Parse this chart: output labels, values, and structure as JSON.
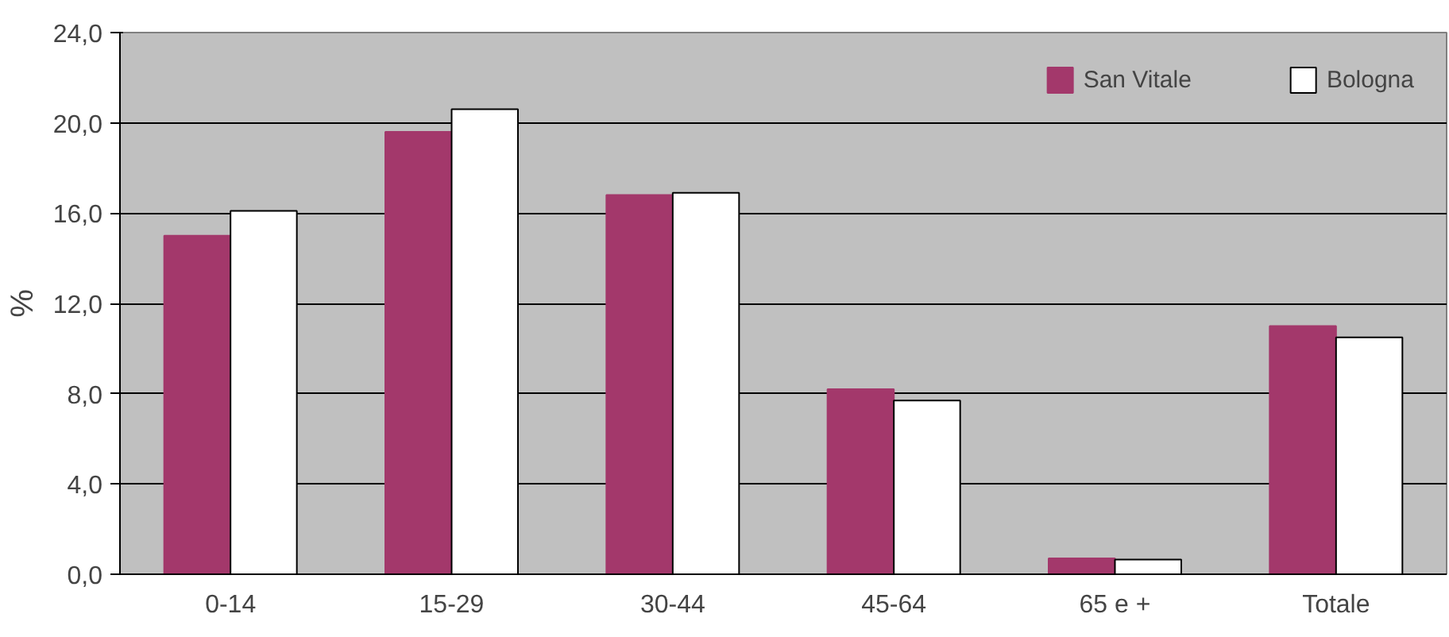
{
  "chart_data": {
    "type": "bar",
    "ylabel": "%",
    "categories": [
      "0-14",
      "15-29",
      "30-44",
      "45-64",
      "65 e +",
      "Totale"
    ],
    "series": [
      {
        "name": "San Vitale",
        "color": "#a3386b",
        "values": [
          15.0,
          19.6,
          16.8,
          8.2,
          0.7,
          11.0
        ]
      },
      {
        "name": "Bologna",
        "color": "#ffffff",
        "values": [
          16.1,
          20.6,
          16.9,
          7.7,
          0.65,
          10.5
        ]
      }
    ],
    "ylim": [
      0,
      24
    ],
    "yticks": [
      {
        "value": 0,
        "label": "0,0"
      },
      {
        "value": 4,
        "label": "4,0"
      },
      {
        "value": 8,
        "label": "8,0"
      },
      {
        "value": 12,
        "label": "12,0"
      },
      {
        "value": 16,
        "label": "16,0"
      },
      {
        "value": 20,
        "label": "20,0"
      },
      {
        "value": 24,
        "label": "24,0"
      }
    ],
    "grid": "y",
    "legend": "top right"
  }
}
